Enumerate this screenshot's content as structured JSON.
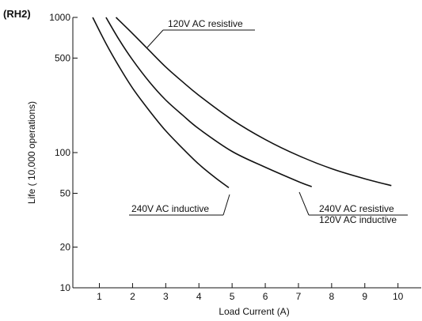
{
  "chart_data": {
    "type": "line",
    "panel_tag": "(RH2)",
    "title": "",
    "xlabel": "Load Current (A)",
    "ylabel": "Life (   10,000 operations)",
    "xlim": [
      0.2,
      10.7
    ],
    "ylim": [
      10,
      1000
    ],
    "y_scale": "log",
    "grid": false,
    "x_ticks": [
      1,
      2,
      3,
      4,
      5,
      6,
      7,
      8,
      9,
      10
    ],
    "y_ticks": [
      10,
      20,
      50,
      100,
      500,
      1000
    ],
    "series": [
      {
        "name": "240V AC inductive",
        "x": [
          0.8,
          1.2,
          1.6,
          2.0,
          2.5,
          3.0,
          3.5,
          4.0,
          4.5,
          4.9
        ],
        "y": [
          1000,
          640,
          430,
          300,
          205,
          145,
          108,
          82,
          65,
          55
        ]
      },
      {
        "name": "240V AC resistive / 120V AC inductive",
        "x": [
          1.2,
          1.6,
          2.0,
          2.5,
          3.0,
          3.5,
          4.0,
          5.0,
          6.0,
          7.0,
          7.4
        ],
        "y": [
          1000,
          680,
          485,
          335,
          245,
          190,
          150,
          102,
          78,
          61,
          56
        ]
      },
      {
        "name": "120V AC resistive",
        "x": [
          1.5,
          2.0,
          2.5,
          3.0,
          3.5,
          4.0,
          5.0,
          6.0,
          7.0,
          8.0,
          9.0,
          9.8
        ],
        "y": [
          1000,
          760,
          570,
          430,
          335,
          265,
          175,
          125,
          95,
          76,
          64,
          57
        ]
      }
    ],
    "annotations": [
      {
        "series": 2,
        "lines": [
          "120V AC resistive"
        ]
      },
      {
        "series": 0,
        "lines": [
          "240V AC inductive"
        ]
      },
      {
        "series": 1,
        "lines": [
          "240V AC resistive",
          "120V AC inductive"
        ]
      }
    ]
  }
}
